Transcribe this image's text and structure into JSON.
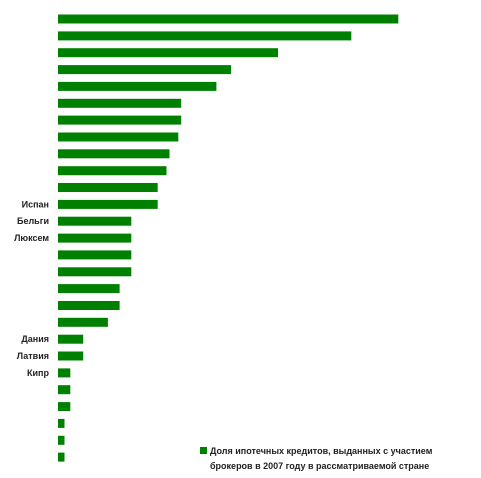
{
  "chart_data": {
    "type": "bar",
    "orientation": "horizontal",
    "categories": [
      "",
      "",
      "",
      "",
      "",
      "",
      "",
      "",
      "",
      "",
      "",
      "Испан",
      "Бельги",
      "Люксем",
      "",
      "",
      "",
      "",
      "",
      "Дания",
      "Латвия",
      "Кипр",
      "",
      "",
      "",
      "",
      ""
    ],
    "series": [
      {
        "name": "Доля ипотечных кредитов, выданных с участием брокеров в 2007 году в рассматриваемой стране",
        "values": [
          58,
          50,
          37.5,
          29.5,
          27,
          21,
          21,
          20.5,
          19,
          18.5,
          17,
          17,
          12.5,
          12.5,
          12.5,
          12.5,
          10.5,
          10.5,
          8.5,
          4.3,
          4.3,
          2.1,
          2.1,
          2.1,
          1.1,
          1.1,
          1.1
        ]
      }
    ],
    "xlim": [
      0,
      75
    ],
    "grid": false,
    "bar_color": "#008000",
    "legend_position": "bottom-right",
    "legend_lines": [
      "Доля ипотечных кредитов, выданных с участием",
      "брокеров в 2007 году в рассматриваемой стране"
    ]
  }
}
